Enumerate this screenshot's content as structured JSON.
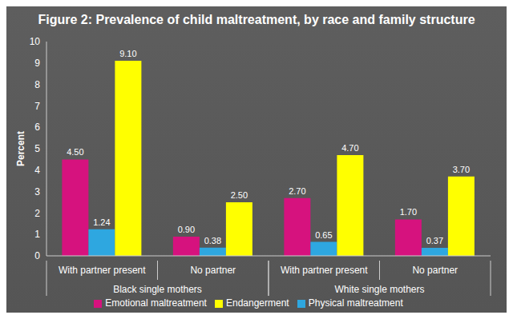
{
  "chart_data": {
    "type": "bar",
    "title": "Figure 2: Prevalence of child maltreatment, by race and family structure",
    "y_label": "Percent",
    "categories": [
      "With partner present",
      "No partner",
      "With partner present",
      "No partner"
    ],
    "category_groups": [
      {
        "label": "Black single mothers",
        "span": 2
      },
      {
        "label": "White single mothers",
        "span": 2
      }
    ],
    "series": [
      {
        "name": "Emotional maltreatment",
        "color": "#d6127e",
        "values": [
          4.5,
          0.9,
          2.7,
          1.7
        ],
        "value_labels": [
          "4.50",
          "0.90",
          "2.70",
          "1.70"
        ]
      },
      {
        "name": "Physical maltreatment",
        "color": "#2ea7e0",
        "values": [
          1.24,
          0.38,
          0.65,
          0.37
        ],
        "value_labels": [
          "1.24",
          "0.38",
          "0.65",
          "0.37"
        ]
      },
      {
        "name": "Endangerment",
        "color": "#ffff00",
        "values": [
          9.1,
          2.5,
          4.7,
          3.7
        ],
        "value_labels": [
          "9.10",
          "2.50",
          "4.70",
          "3.70"
        ]
      }
    ],
    "ylim": [
      0,
      10
    ],
    "yticks": [
      0,
      1,
      2,
      3,
      4,
      5,
      6,
      7,
      8,
      9,
      10
    ],
    "grid": false,
    "legend": "bottom",
    "data_labels": true
  }
}
